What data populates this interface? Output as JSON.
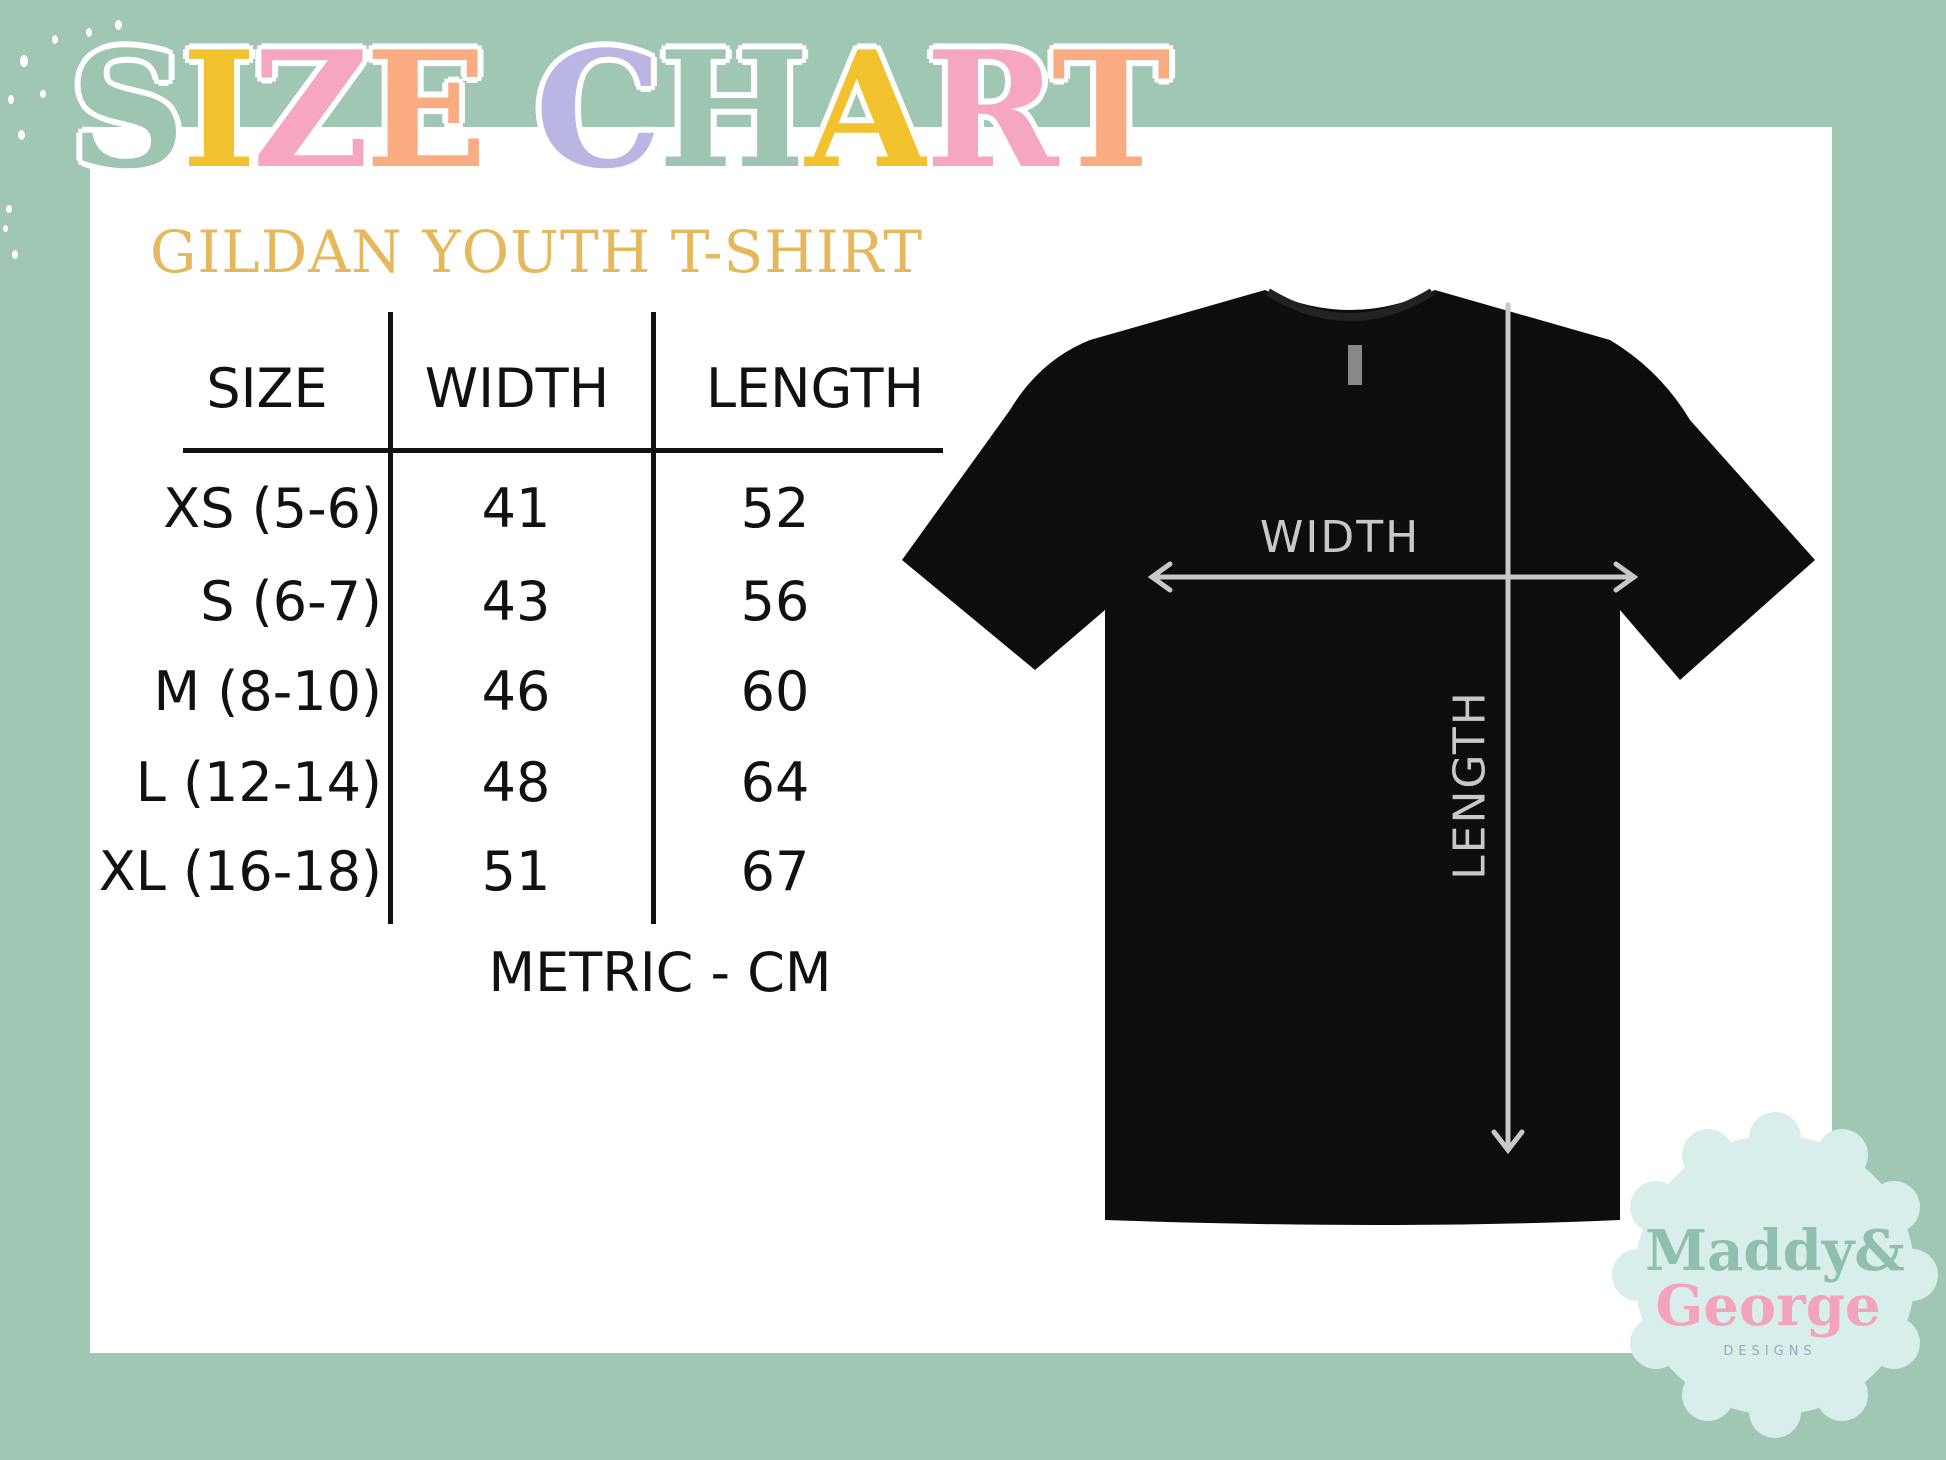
{
  "title": {
    "letters": [
      "S",
      "I",
      "Z",
      "E",
      " ",
      "C",
      "H",
      "A",
      "R",
      "T"
    ],
    "colors": [
      "#9ec4b2",
      "#f2c12e",
      "#f7a6c0",
      "#f9ab82",
      "",
      "#b9b6e3",
      "#9ec4b2",
      "#f2c12e",
      "#f7a6c0",
      "#f9ab82"
    ]
  },
  "subtitle": "GILDAN YOUTH T-SHIRT",
  "table": {
    "headers": [
      "SIZE",
      "WIDTH",
      "LENGTH"
    ],
    "rows": [
      {
        "size": "XS (5-6)",
        "width": "41",
        "length": "52"
      },
      {
        "size": "S (6-7)",
        "width": "43",
        "length": "56"
      },
      {
        "size": "M (8-10)",
        "width": "46",
        "length": "60"
      },
      {
        "size": "L (12-14)",
        "width": "48",
        "length": "64"
      },
      {
        "size": "XL (16-18)",
        "width": "51",
        "length": "67"
      }
    ],
    "unit_note": "METRIC - CM"
  },
  "diagram": {
    "width_label": "WIDTH",
    "length_label": "LENGTH"
  },
  "logo": {
    "line1": "Maddy&",
    "line2": "George",
    "line3": "DESIGNS"
  },
  "colors": {
    "background": "#a0c6b4",
    "accent": "#e6b85c",
    "shirt": "#0d0d0d",
    "arrow": "#c8c8c8"
  }
}
